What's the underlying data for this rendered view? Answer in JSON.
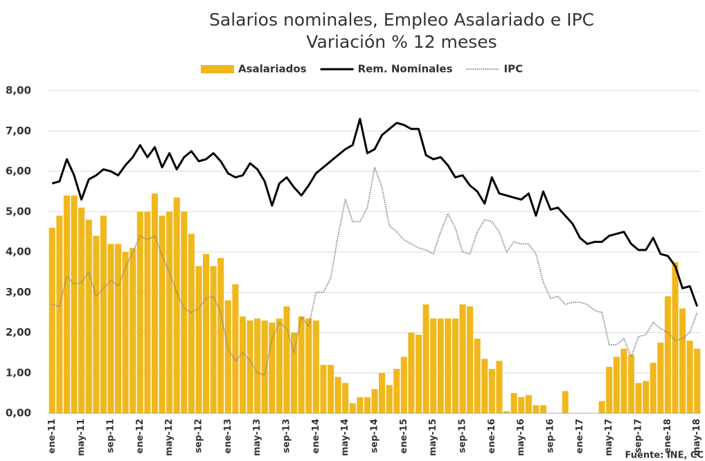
{
  "chart_data": {
    "type": "bar_line",
    "title": "Salarios nominales,  Empleo Asalariado e IPC",
    "subtitle": "Variación % 12 meses",
    "annotation": "Fuente: INE, CC",
    "categories": [
      "ene-11",
      null,
      null,
      null,
      "may-11",
      null,
      null,
      null,
      "sep-11",
      null,
      null,
      null,
      "ene-12",
      null,
      null,
      null,
      "may-12",
      null,
      null,
      null,
      "sep-12",
      null,
      null,
      null,
      "ene-13",
      null,
      null,
      null,
      "may-13",
      null,
      null,
      null,
      "sep-13",
      null,
      null,
      null,
      "ene-14",
      null,
      null,
      null,
      "may-14",
      null,
      null,
      null,
      "sep-14",
      null,
      null,
      null,
      "ene-15",
      null,
      null,
      null,
      "may-15",
      null,
      null,
      null,
      "sep-15",
      null,
      null,
      null,
      "ene-16",
      null,
      null,
      null,
      "may-16",
      null,
      null,
      null,
      "sep-16",
      null,
      null,
      null,
      "ene-17",
      null,
      null,
      null,
      "may-17",
      null,
      null,
      null,
      "sep-17",
      null,
      null,
      null,
      "ene-18",
      null,
      null,
      null,
      "may-18"
    ],
    "series": [
      {
        "name": "Asalariados",
        "kind": "bar",
        "color": "#f0b81c",
        "values": [
          4.6,
          4.9,
          5.4,
          5.4,
          5.1,
          4.8,
          4.4,
          4.9,
          4.2,
          4.2,
          4.0,
          4.1,
          5.0,
          5.0,
          5.45,
          4.9,
          5.0,
          5.35,
          5.0,
          4.45,
          3.65,
          3.95,
          3.65,
          3.85,
          2.8,
          3.2,
          2.4,
          2.3,
          2.35,
          2.3,
          2.25,
          2.35,
          2.65,
          2.0,
          2.4,
          2.35,
          2.3,
          1.2,
          1.2,
          0.9,
          0.75,
          0.25,
          0.4,
          0.4,
          0.6,
          1.0,
          0.7,
          1.1,
          1.4,
          2.0,
          1.95,
          2.7,
          2.35,
          2.35,
          2.35,
          2.35,
          2.7,
          2.65,
          1.85,
          1.35,
          1.1,
          1.3,
          0.05,
          0.5,
          0.4,
          0.45,
          0.2,
          0.2,
          0,
          0,
          0.55,
          0,
          0,
          0,
          0,
          0.3,
          1.15,
          1.4,
          1.6,
          1.45,
          0.75,
          0.8,
          1.25,
          1.75,
          2.9,
          3.75,
          2.6,
          1.8,
          1.6
        ]
      },
      {
        "name": "Rem. Nominales",
        "kind": "line",
        "style": "solid",
        "color": "#000000",
        "values": [
          5.7,
          5.75,
          6.3,
          5.9,
          5.3,
          5.8,
          5.9,
          6.05,
          6.0,
          5.9,
          6.15,
          6.35,
          6.65,
          6.35,
          6.6,
          6.1,
          6.45,
          6.05,
          6.35,
          6.5,
          6.25,
          6.3,
          6.45,
          6.25,
          5.95,
          5.85,
          5.9,
          6.2,
          6.05,
          5.75,
          5.15,
          5.7,
          5.85,
          5.6,
          5.4,
          5.65,
          5.95,
          6.1,
          6.25,
          6.4,
          6.55,
          6.65,
          7.3,
          6.45,
          6.55,
          6.9,
          7.05,
          7.2,
          7.15,
          7.05,
          7.05,
          6.4,
          6.3,
          6.35,
          6.15,
          5.85,
          5.9,
          5.65,
          5.5,
          5.2,
          5.85,
          5.45,
          5.4,
          5.35,
          5.3,
          5.45,
          4.9,
          5.5,
          5.05,
          5.1,
          4.9,
          4.7,
          4.35,
          4.2,
          4.25,
          4.25,
          4.4,
          4.45,
          4.5,
          4.2,
          4.05,
          4.05,
          4.35,
          3.95,
          3.9,
          3.65,
          3.1,
          3.15,
          2.65
        ]
      },
      {
        "name": "IPC",
        "kind": "line",
        "style": "dotted",
        "color": "#888888",
        "values": [
          2.7,
          2.65,
          3.4,
          3.2,
          3.25,
          3.5,
          2.9,
          3.1,
          3.3,
          3.15,
          3.6,
          4.0,
          4.4,
          4.3,
          4.4,
          3.9,
          3.5,
          3.0,
          2.6,
          2.5,
          2.6,
          2.85,
          2.9,
          2.5,
          1.6,
          1.3,
          1.5,
          1.3,
          1.0,
          0.95,
          1.85,
          2.25,
          2.1,
          1.5,
          2.4,
          2.15,
          3.0,
          3.0,
          3.35,
          4.4,
          5.3,
          4.75,
          4.75,
          5.1,
          6.1,
          5.6,
          4.65,
          4.5,
          4.3,
          4.2,
          4.1,
          4.05,
          3.95,
          4.5,
          4.95,
          4.6,
          4.0,
          3.95,
          4.5,
          4.8,
          4.75,
          4.5,
          4.0,
          4.25,
          4.2,
          4.2,
          3.95,
          3.25,
          2.85,
          2.9,
          2.7,
          2.75,
          2.75,
          2.7,
          2.55,
          2.5,
          1.7,
          1.7,
          1.85,
          1.4,
          1.9,
          1.95,
          2.25,
          2.1,
          2.0,
          1.8,
          1.85,
          2.0,
          2.5
        ]
      }
    ],
    "ylim": [
      0,
      8
    ],
    "yticks": [
      {
        "value": 0,
        "label": "0,00"
      },
      {
        "value": 1,
        "label": "1,00"
      },
      {
        "value": 2,
        "label": "2,00"
      },
      {
        "value": 3,
        "label": "3,00"
      },
      {
        "value": 4,
        "label": "4,00"
      },
      {
        "value": 5,
        "label": "5,00"
      },
      {
        "value": 6,
        "label": "6,00"
      },
      {
        "value": 7,
        "label": "7,00"
      },
      {
        "value": 8,
        "label": "8,00"
      }
    ],
    "grid": true,
    "legend": "top"
  }
}
